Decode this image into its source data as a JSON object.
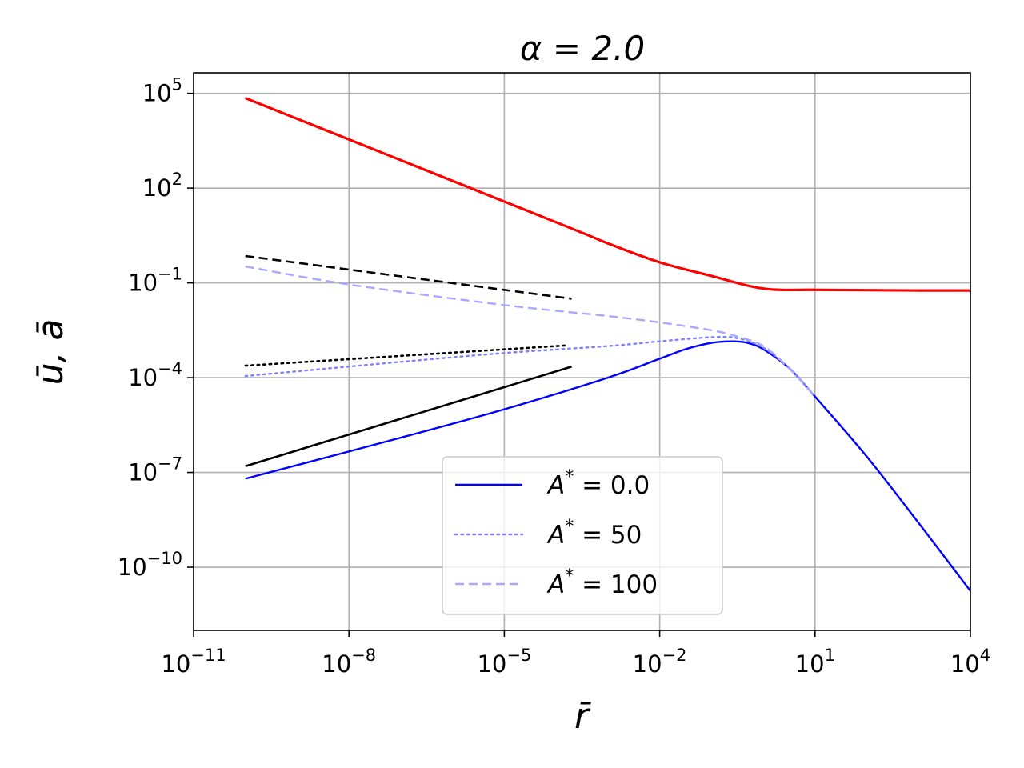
{
  "chart_data": {
    "type": "line",
    "title": "α = 2.0",
    "xlabel": "r̄",
    "ylabel": "ū, ā",
    "x_scale": "log",
    "y_scale": "log",
    "xlim_exp": [
      -11,
      4
    ],
    "ylim_exp": [
      -12,
      5.65
    ],
    "grid": true,
    "x_ticks": [
      {
        "exp": -11,
        "base": "10",
        "sup": "−11"
      },
      {
        "exp": -8,
        "base": "10",
        "sup": "−8"
      },
      {
        "exp": -5,
        "base": "10",
        "sup": "−5"
      },
      {
        "exp": -2,
        "base": "10",
        "sup": "−2"
      },
      {
        "exp": 1,
        "base": "10",
        "sup": "1"
      },
      {
        "exp": 4,
        "base": "10",
        "sup": "4"
      }
    ],
    "y_ticks": [
      {
        "exp": 5,
        "base": "10",
        "sup": "5"
      },
      {
        "exp": 2,
        "base": "10",
        "sup": "2"
      },
      {
        "exp": -1,
        "base": "10",
        "sup": "−1"
      },
      {
        "exp": -4,
        "base": "10",
        "sup": "−4"
      },
      {
        "exp": -7,
        "base": "10",
        "sup": "−7"
      },
      {
        "exp": -10,
        "base": "10",
        "sup": "−10"
      }
    ],
    "legend": {
      "position": "lower-center",
      "entries": [
        {
          "label_base": "A",
          "label_sup": "*",
          "label_rest": " = 0.0",
          "color": "#0000ff",
          "dash": "solid"
        },
        {
          "label_base": "A",
          "label_sup": "*",
          "label_rest": " = 50",
          "color": "#7f7fff",
          "dash": "dotted"
        },
        {
          "label_base": "A",
          "label_sup": "*",
          "label_rest": " = 100",
          "color": "#a8a8ff",
          "dash": "dashed"
        }
      ]
    },
    "series": [
      {
        "id": "a-red",
        "color": "#ff0000",
        "dash": "solid",
        "width": 3.2,
        "points_log10": [
          [
            -10,
            4.85
          ],
          [
            -4,
            0.92
          ],
          [
            -3,
            0.25
          ],
          [
            -2,
            -0.35
          ],
          [
            -1,
            -0.78
          ],
          [
            0,
            -1.18
          ],
          [
            1,
            -1.22
          ],
          [
            2,
            -1.23
          ],
          [
            3,
            -1.24
          ],
          [
            4,
            -1.24
          ]
        ]
      },
      {
        "id": "u-A0",
        "color": "#0000ff",
        "dash": "solid",
        "width": 2.4,
        "points_log10": [
          [
            -10,
            -7.2
          ],
          [
            -7,
            -5.9
          ],
          [
            -5,
            -5.0
          ],
          [
            -3,
            -4.0
          ],
          [
            -2,
            -3.4
          ],
          [
            -1.5,
            -3.1
          ],
          [
            -1,
            -2.9
          ],
          [
            -0.6,
            -2.85
          ],
          [
            -0.3,
            -2.9
          ],
          [
            0,
            -3.1
          ],
          [
            0.5,
            -3.7
          ],
          [
            1,
            -4.6
          ],
          [
            2,
            -6.5
          ],
          [
            3,
            -8.6
          ],
          [
            4,
            -10.75
          ]
        ]
      },
      {
        "id": "u-A50",
        "color": "#7f7fff",
        "dash": "dotted",
        "width": 2.4,
        "points_log10": [
          [
            -10,
            -3.95
          ],
          [
            -7,
            -3.5
          ],
          [
            -5,
            -3.22
          ],
          [
            -3,
            -3.0
          ],
          [
            -2,
            -2.85
          ],
          [
            -1,
            -2.72
          ],
          [
            -0.5,
            -2.75
          ],
          [
            0,
            -3.05
          ],
          [
            0.5,
            -3.7
          ],
          [
            1,
            -4.6
          ]
        ]
      },
      {
        "id": "u-A100",
        "color": "#a8a8ff",
        "dash": "dashed",
        "width": 2.4,
        "points_log10": [
          [
            -10,
            -0.48
          ],
          [
            -8,
            -1.05
          ],
          [
            -5,
            -1.7
          ],
          [
            -3,
            -2.05
          ],
          [
            -2,
            -2.25
          ],
          [
            -1,
            -2.5
          ],
          [
            -0.5,
            -2.7
          ],
          [
            0,
            -3.0
          ],
          [
            0.5,
            -3.7
          ],
          [
            1,
            -4.6
          ]
        ]
      },
      {
        "id": "asym-solid",
        "color": "#000000",
        "dash": "solid",
        "width": 2.6,
        "points_log10": [
          [
            -10,
            -6.8
          ],
          [
            -3.7,
            -3.65
          ]
        ]
      },
      {
        "id": "asym-dotted",
        "color": "#000000",
        "dash": "dotted",
        "width": 2.6,
        "points_log10": [
          [
            -10,
            -3.62
          ],
          [
            -3.8,
            -2.98
          ]
        ]
      },
      {
        "id": "asym-dashed",
        "color": "#000000",
        "dash": "dashed",
        "width": 2.6,
        "points_log10": [
          [
            -10,
            -0.15
          ],
          [
            -3.7,
            -1.5
          ]
        ]
      }
    ]
  }
}
